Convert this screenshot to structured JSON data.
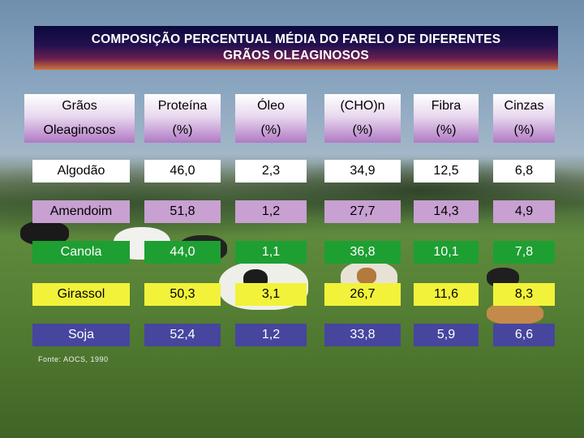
{
  "title": {
    "line1": "COMPOSIÇÃO PERCENTUAL MÉDIA DO FARELO DE DIFERENTES",
    "line2": "GRÃOS OLEAGINOSOS"
  },
  "table": {
    "header_row1": [
      "Grãos",
      "Proteína",
      "Óleo",
      "(CHO)n",
      "Fibra",
      "Cinzas"
    ],
    "header_row2": [
      "Oleaginosos",
      "(%)",
      "(%)",
      "(%)",
      "(%)",
      "(%)"
    ],
    "rows": [
      {
        "name": "Algodão",
        "color": "#ffffff",
        "values": [
          "46,0",
          "2,3",
          "34,9",
          "12,5",
          "6,8"
        ]
      },
      {
        "name": "Amendoim",
        "color": "#c8a0d2",
        "values": [
          "51,8",
          "1,2",
          "27,7",
          "14,3",
          "4,9"
        ]
      },
      {
        "name": "Canola",
        "color": "#1e9f32",
        "values": [
          "44,0",
          "1,1",
          "36,8",
          "10,1",
          "7,8"
        ]
      },
      {
        "name": "Girassol",
        "color": "#f2f23a",
        "values": [
          "50,3",
          "3,1",
          "26,7",
          "11,6",
          "8,3"
        ]
      },
      {
        "name": "Soja",
        "color": "#46469e",
        "values": [
          "52,4",
          "1,2",
          "33,8",
          "5,9",
          "6,6"
        ]
      }
    ]
  },
  "source": "Fonte: AOCS, 1990"
}
